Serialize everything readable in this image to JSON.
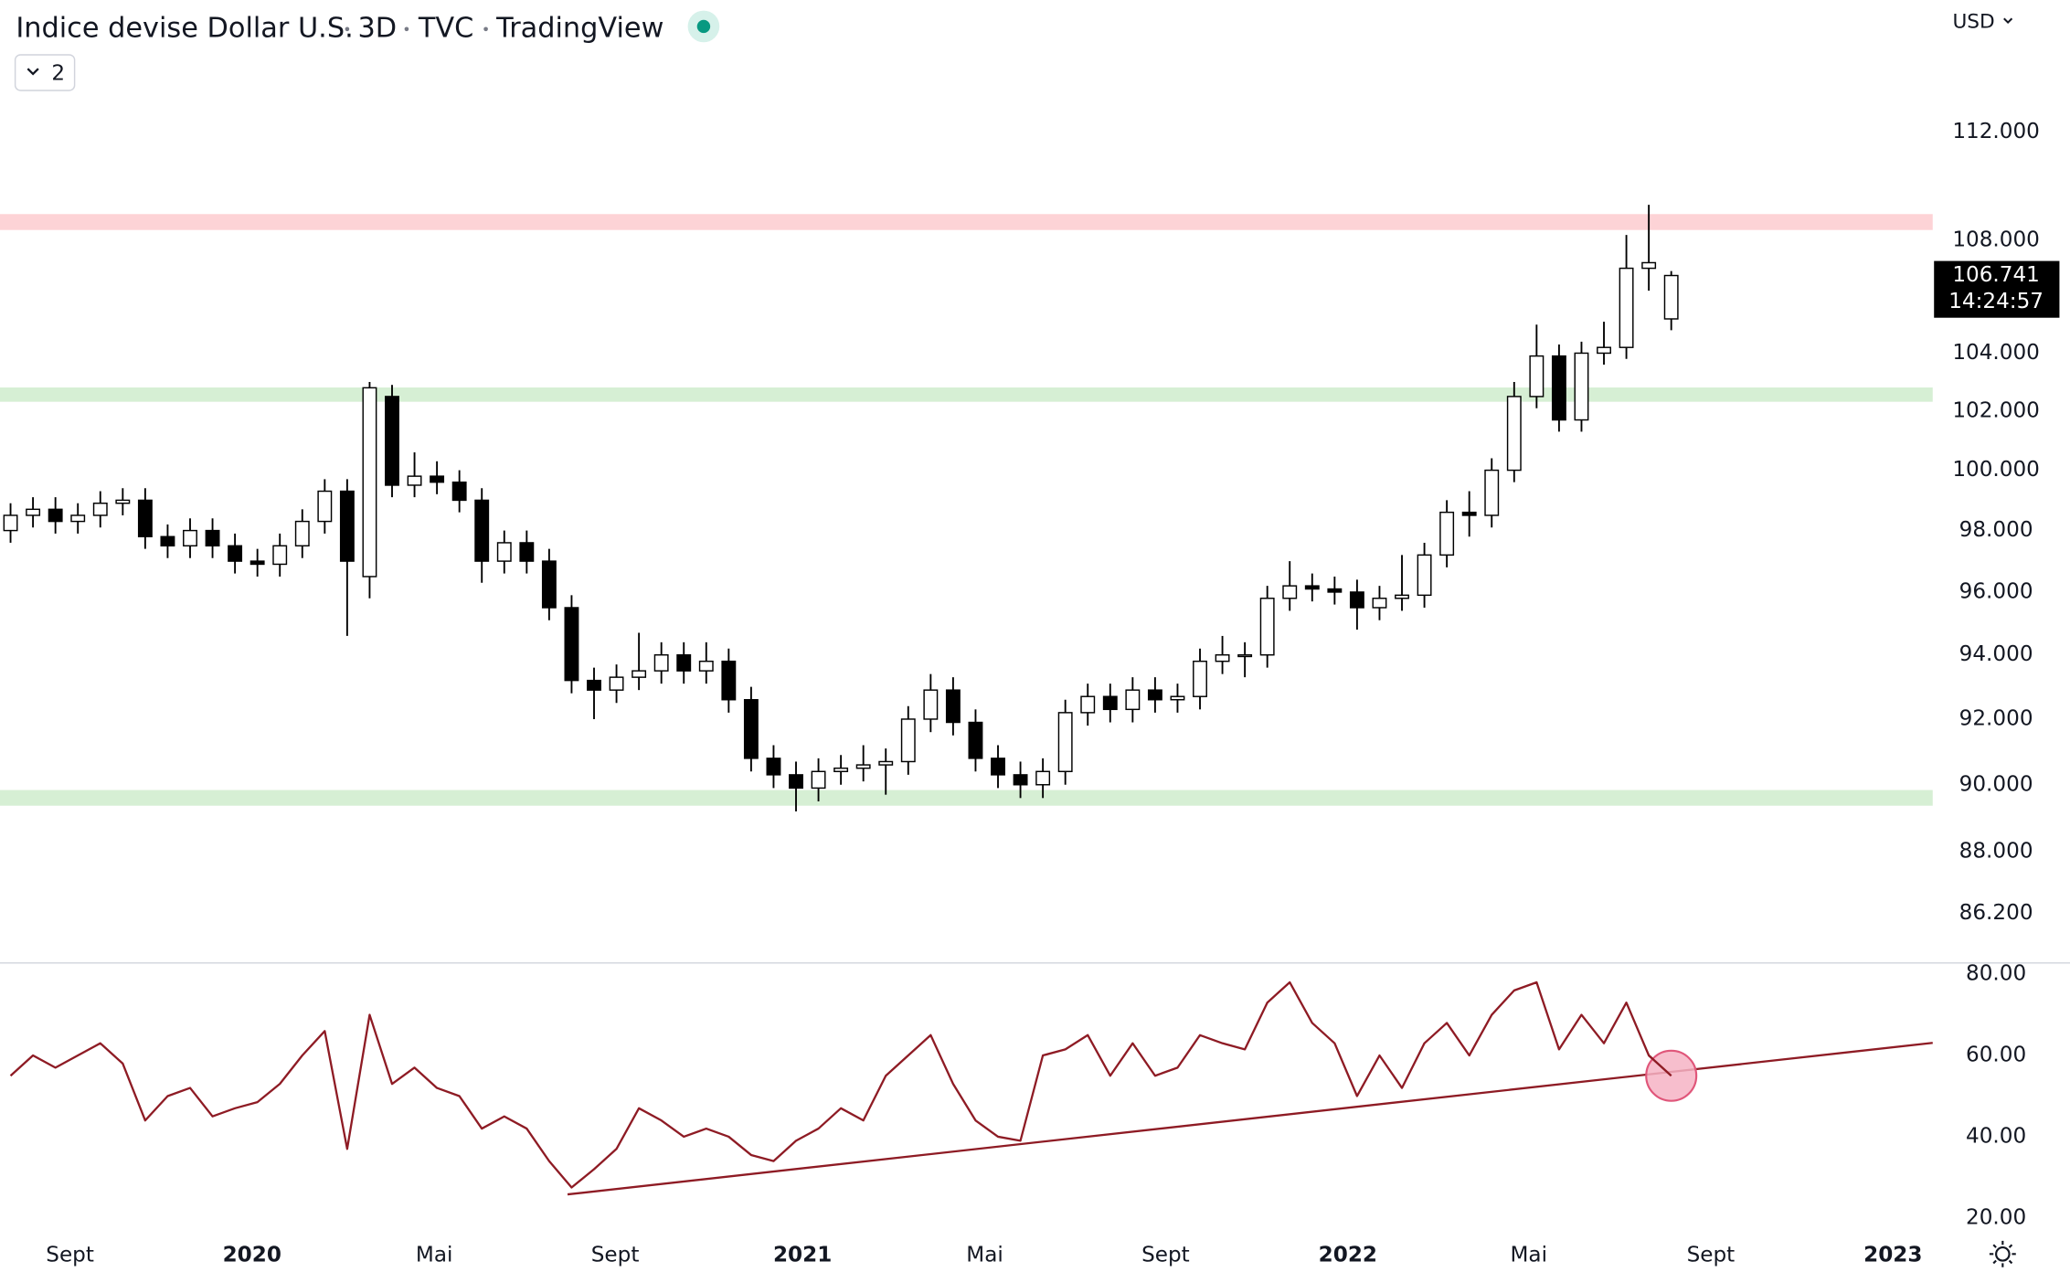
{
  "header": {
    "symbol": "Indice devise Dollar U.S.",
    "interval": "3D",
    "exchange": "TVC",
    "source": "TradingView",
    "currency": "USD",
    "indicator_count": "2"
  },
  "chart_data": [
    {
      "type": "candlestick",
      "log_scale": true,
      "ylim": [
        84.84,
        117.06
      ],
      "xlim": [
        -0.47,
        85.65
      ],
      "yticks": [
        {
          "value": 112,
          "label": "112.000"
        },
        {
          "value": 108,
          "label": "108.000"
        },
        {
          "value": 104,
          "label": "104.000"
        },
        {
          "value": 102,
          "label": "102.000"
        },
        {
          "value": 100,
          "label": "100.000"
        },
        {
          "value": 98,
          "label": "98.000"
        },
        {
          "value": 96,
          "label": "96.000"
        },
        {
          "value": 94,
          "label": "94.000"
        },
        {
          "value": 92,
          "label": "92.000"
        },
        {
          "value": 90,
          "label": "90.000"
        },
        {
          "value": 88,
          "label": "88.000"
        },
        {
          "value": 86.2,
          "label": "86.200"
        }
      ],
      "up_color": "#ffffff",
      "down_color": "#000000",
      "wick_color": "#000000",
      "open": [
        98.0,
        98.5,
        98.7,
        98.3,
        98.5,
        98.9,
        99.0,
        97.8,
        97.5,
        98.0,
        97.5,
        97.0,
        96.9,
        97.5,
        98.3,
        99.3,
        96.5,
        102.5,
        99.5,
        99.8,
        99.6,
        99.0,
        97.0,
        97.6,
        97.0,
        95.5,
        93.2,
        92.9,
        93.3,
        93.5,
        94.0,
        93.5,
        93.8,
        92.6,
        90.8,
        90.3,
        89.9,
        90.4,
        90.5,
        90.6,
        90.7,
        92.0,
        92.9,
        91.9,
        90.8,
        90.3,
        90.0,
        90.4,
        92.2,
        92.7,
        92.3,
        92.9,
        92.6,
        92.7,
        93.8,
        94.0,
        94.0,
        95.8,
        96.2,
        96.1,
        96.0,
        95.5,
        95.8,
        95.9,
        97.2,
        98.6,
        98.5,
        100.0,
        102.5,
        103.9,
        101.7,
        104.0,
        104.2,
        107.0,
        105.2
      ],
      "high": [
        98.9,
        99.1,
        99.1,
        98.9,
        99.3,
        99.4,
        99.4,
        98.2,
        98.4,
        98.4,
        97.9,
        97.4,
        97.9,
        98.7,
        99.7,
        99.7,
        103.0,
        102.9,
        100.6,
        100.3,
        100.0,
        99.4,
        98.0,
        98.0,
        97.4,
        95.9,
        93.6,
        93.7,
        94.7,
        94.4,
        94.4,
        94.4,
        94.2,
        93.0,
        91.2,
        90.7,
        90.8,
        90.9,
        91.2,
        91.1,
        92.4,
        93.4,
        93.3,
        92.3,
        91.2,
        90.7,
        90.8,
        92.6,
        93.1,
        93.1,
        93.3,
        93.3,
        93.1,
        94.2,
        94.6,
        94.4,
        96.2,
        97.0,
        96.6,
        96.5,
        96.4,
        96.2,
        97.2,
        97.6,
        99.0,
        99.3,
        100.4,
        103.0,
        105.0,
        104.3,
        104.4,
        105.1,
        108.2,
        109.3,
        106.9
      ],
      "low": [
        97.6,
        98.1,
        97.9,
        97.9,
        98.1,
        98.5,
        97.4,
        97.1,
        97.1,
        97.1,
        96.6,
        96.5,
        96.5,
        97.1,
        97.9,
        94.6,
        95.8,
        99.1,
        99.1,
        99.2,
        98.6,
        96.3,
        96.6,
        96.6,
        95.1,
        92.8,
        92.0,
        92.5,
        92.9,
        93.1,
        93.1,
        93.1,
        92.2,
        90.4,
        89.9,
        89.2,
        89.5,
        90.0,
        90.1,
        89.7,
        90.3,
        91.6,
        91.5,
        90.4,
        89.9,
        89.6,
        89.6,
        90.0,
        91.8,
        91.9,
        91.9,
        92.2,
        92.2,
        92.3,
        93.4,
        93.3,
        93.6,
        95.4,
        95.7,
        95.6,
        94.8,
        95.1,
        95.4,
        95.5,
        96.8,
        97.8,
        98.1,
        99.6,
        102.1,
        101.3,
        101.3,
        103.6,
        103.8,
        106.2,
        104.8
      ],
      "close": [
        98.5,
        98.7,
        98.3,
        98.5,
        98.9,
        99.0,
        97.8,
        97.5,
        98.0,
        97.5,
        97.0,
        96.9,
        97.5,
        98.3,
        99.3,
        97.0,
        102.8,
        99.5,
        99.8,
        99.6,
        99.0,
        97.0,
        97.6,
        97.0,
        95.5,
        93.2,
        92.9,
        93.3,
        93.5,
        94.0,
        93.5,
        93.8,
        92.6,
        90.8,
        90.3,
        89.9,
        90.4,
        90.5,
        90.6,
        90.7,
        92.0,
        92.9,
        91.9,
        90.8,
        90.3,
        90.0,
        90.4,
        92.2,
        92.7,
        92.3,
        92.9,
        92.6,
        92.7,
        93.8,
        94.0,
        94.0,
        95.8,
        96.2,
        96.1,
        96.0,
        95.5,
        95.8,
        95.9,
        97.2,
        98.6,
        98.5,
        100.0,
        102.5,
        103.9,
        101.7,
        104.0,
        104.2,
        107.0,
        107.2,
        106.74
      ],
      "zones": [
        {
          "from": 108.38,
          "to": 108.96,
          "color": "#fdd3d6"
        },
        {
          "from": 102.32,
          "to": 102.81,
          "color": "#d6efd4"
        },
        {
          "from": 89.37,
          "to": 89.84,
          "color": "#d6efd4"
        }
      ],
      "last_price": 106.741,
      "countdown": "14:24:57"
    },
    {
      "type": "line",
      "ylim": [
        16,
        82.6
      ],
      "xlim": [
        -0.47,
        85.65
      ],
      "yticks": [
        {
          "value": 80,
          "label": "80.00"
        },
        {
          "value": 60,
          "label": "60.00"
        },
        {
          "value": 40,
          "label": "40.00"
        },
        {
          "value": 20,
          "label": "20.00"
        }
      ],
      "series": [
        {
          "color": "#8e1b24",
          "values": [
            55,
            60,
            57,
            60,
            63,
            58,
            44,
            50,
            52,
            45,
            47,
            48.5,
            53,
            60,
            66,
            37,
            70,
            53,
            57,
            52,
            50,
            42,
            45,
            42,
            34,
            27.5,
            32,
            37,
            47,
            44,
            40,
            42,
            40,
            35.5,
            34,
            39,
            42,
            47,
            44,
            55,
            60,
            65,
            53,
            44,
            40,
            39,
            60,
            61.5,
            65,
            55,
            63,
            55,
            57,
            65,
            63,
            61.5,
            73,
            78,
            68,
            63,
            50,
            60,
            52,
            63,
            68,
            60,
            70,
            76,
            78,
            61.5,
            70,
            63,
            73,
            60,
            55
          ]
        }
      ],
      "trendline": {
        "x": [
          24.82,
          85.65
        ],
        "y": [
          25.8,
          63.1
        ],
        "color": "#8e1b24"
      },
      "highlight": {
        "x": 74,
        "y": 55,
        "color": "#f6b3c4"
      },
      "xticks": [
        {
          "value": 2.65,
          "label": "Sept"
        },
        {
          "value": 10.76,
          "label": "2020"
        },
        {
          "value": 18.88,
          "label": "Mai"
        },
        {
          "value": 26.94,
          "label": "Sept"
        },
        {
          "value": 35.29,
          "label": "2021"
        },
        {
          "value": 43.41,
          "label": "Mai"
        },
        {
          "value": 51.47,
          "label": "Sept"
        },
        {
          "value": 59.59,
          "label": "2022"
        },
        {
          "value": 67.65,
          "label": "Mai"
        },
        {
          "value": 75.76,
          "label": "Sept"
        },
        {
          "value": 83.88,
          "label": "2023"
        }
      ]
    }
  ]
}
